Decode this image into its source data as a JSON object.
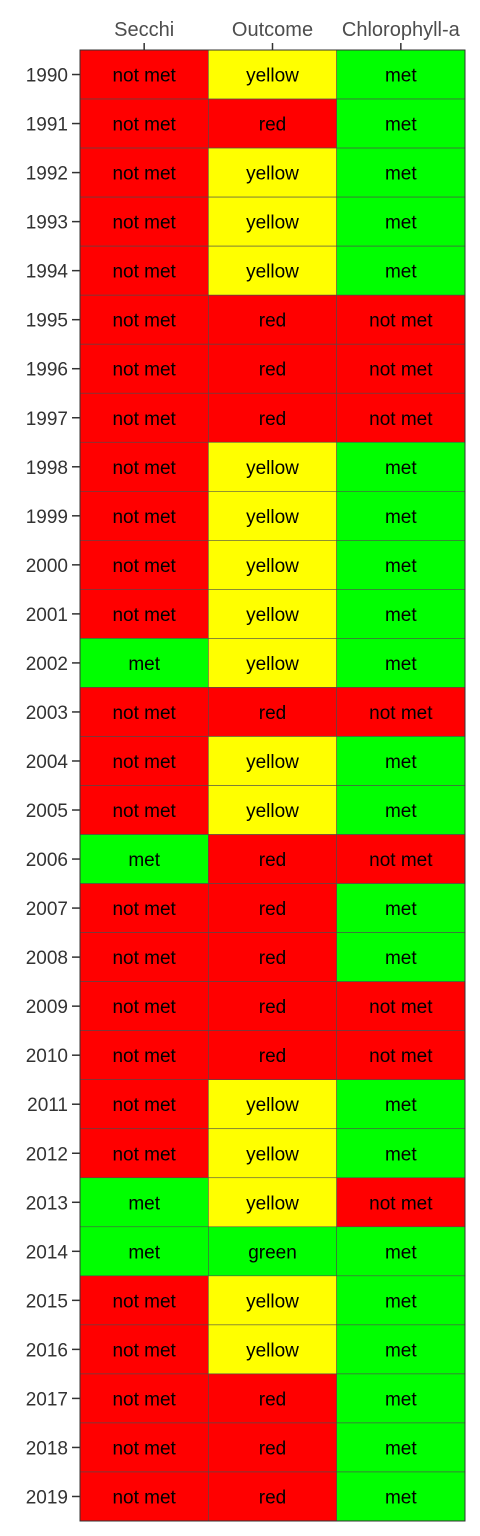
{
  "chart_data": {
    "type": "heatmap",
    "title": "",
    "xlabel": "",
    "ylabel": "",
    "columns": [
      "Secchi",
      "Outcome",
      "Chlorophyll-a"
    ],
    "rows": [
      "1990",
      "1991",
      "1992",
      "1993",
      "1994",
      "1995",
      "1996",
      "1997",
      "1998",
      "1999",
      "2000",
      "2001",
      "2002",
      "2003",
      "2004",
      "2005",
      "2006",
      "2007",
      "2008",
      "2009",
      "2010",
      "2011",
      "2012",
      "2013",
      "2014",
      "2015",
      "2016",
      "2017",
      "2018",
      "2019"
    ],
    "values": [
      [
        "not met",
        "yellow",
        "met"
      ],
      [
        "not met",
        "red",
        "met"
      ],
      [
        "not met",
        "yellow",
        "met"
      ],
      [
        "not met",
        "yellow",
        "met"
      ],
      [
        "not met",
        "yellow",
        "met"
      ],
      [
        "not met",
        "red",
        "not met"
      ],
      [
        "not met",
        "red",
        "not met"
      ],
      [
        "not met",
        "red",
        "not met"
      ],
      [
        "not met",
        "yellow",
        "met"
      ],
      [
        "not met",
        "yellow",
        "met"
      ],
      [
        "not met",
        "yellow",
        "met"
      ],
      [
        "not met",
        "yellow",
        "met"
      ],
      [
        "met",
        "yellow",
        "met"
      ],
      [
        "not met",
        "red",
        "not met"
      ],
      [
        "not met",
        "yellow",
        "met"
      ],
      [
        "not met",
        "yellow",
        "met"
      ],
      [
        "met",
        "red",
        "not met"
      ],
      [
        "not met",
        "red",
        "met"
      ],
      [
        "not met",
        "red",
        "met"
      ],
      [
        "not met",
        "red",
        "not met"
      ],
      [
        "not met",
        "red",
        "not met"
      ],
      [
        "not met",
        "yellow",
        "met"
      ],
      [
        "not met",
        "yellow",
        "met"
      ],
      [
        "met",
        "yellow",
        "not met"
      ],
      [
        "met",
        "green",
        "met"
      ],
      [
        "not met",
        "yellow",
        "met"
      ],
      [
        "not met",
        "yellow",
        "met"
      ],
      [
        "not met",
        "red",
        "met"
      ],
      [
        "not met",
        "red",
        "met"
      ],
      [
        "not met",
        "red",
        "met"
      ]
    ],
    "color_map": {
      "not met": "#ff0000",
      "met": "#00ff00",
      "red": "#ff0000",
      "yellow": "#ffff00",
      "green": "#00ff00"
    },
    "legend": "none",
    "grid": false
  }
}
